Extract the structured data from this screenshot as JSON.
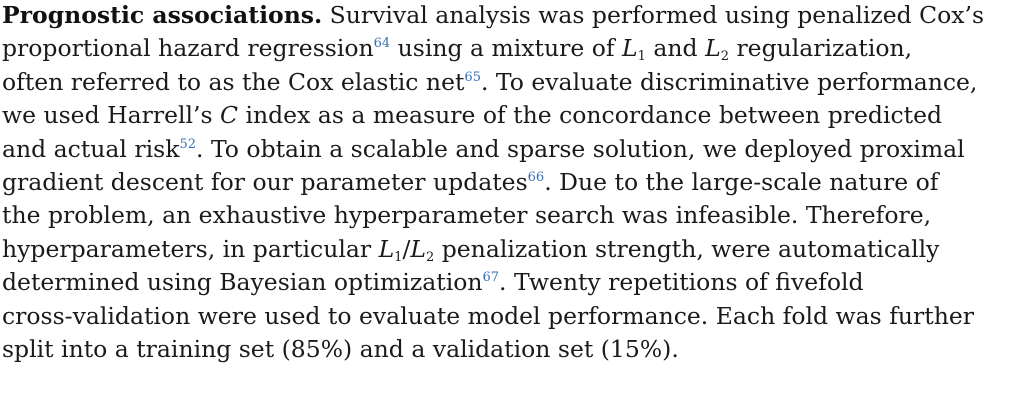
{
  "section": {
    "heading": "Prognostic associations.",
    "lines": [
      {
        "a": " Survival analysis was performed using penalized Cox’s"
      },
      {
        "a": "proportional hazard regression",
        "ref": "64",
        "b": " using a mixture of ",
        "v1": "L",
        "s1": "1",
        "c": " and ",
        "v2": "L",
        "s2": "2",
        "d": " regularization,"
      },
      {
        "a": "often referred to as the Cox elastic net",
        "ref": "65",
        "b": ". To evaluate discriminative performance,"
      },
      {
        "a": "we used Harrell’s ",
        "v": "C",
        "b": " index as a measure of the concordance between predicted"
      },
      {
        "a": "and actual risk",
        "ref": "52",
        "b": ". To obtain a scalable and sparse solution, we deployed proximal"
      },
      {
        "a": "gradient descent for our parameter updates",
        "ref": "66",
        "b": ". Due to the large-scale nature of"
      },
      {
        "a": "the problem, an exhaustive hyperparameter search was infeasible. Therefore,"
      },
      {
        "a": "hyperparameters, in particular ",
        "v1": "L",
        "s1": "1",
        "c": "/",
        "v2": "L",
        "s2": "2",
        "b": " penalization strength, were automatically"
      },
      {
        "a": "determined using Bayesian optimization",
        "ref": "67",
        "b": ". Twenty repetitions of fivefold"
      },
      {
        "a": "cross-validation were used to evaluate model performance. Each fold was further"
      },
      {
        "a": "split into a training set (85%) and a validation set (15%)."
      }
    ]
  },
  "colors": {
    "text": "#1a1a1a",
    "citation": "#3a6fb5",
    "background": "#ffffff"
  }
}
